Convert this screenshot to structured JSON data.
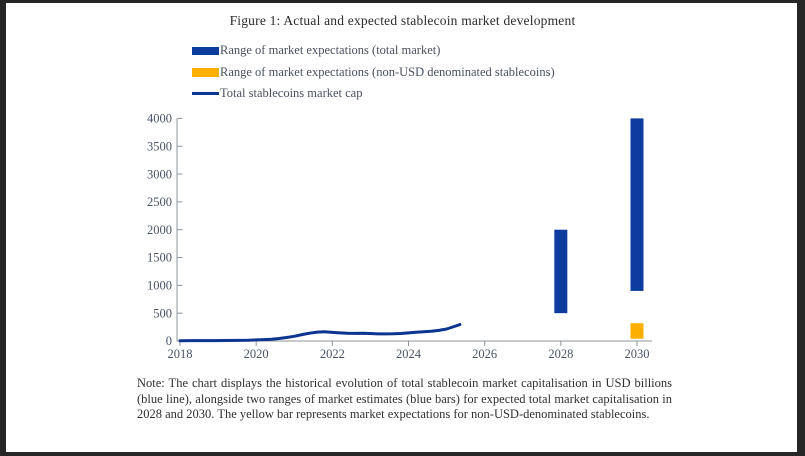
{
  "figure": {
    "title": "Figure 1: Actual and expected stablecoin market development",
    "note": "Note: The chart displays the historical evolution of total stablecoin market capitalisation in USD billions (blue line), alongside two ranges of market estimates (blue bars) for expected total market capitalisation in 2028 and 2030. The yellow bar represents market expectations for non-USD-denominated stablecoins."
  },
  "legend": {
    "items": [
      {
        "label": "Range of market expectations (total market)",
        "swatch": "bar",
        "color": "#0C3C9E"
      },
      {
        "label": "Range of market expectations (non-USD denominated stablecoins)",
        "swatch": "bar",
        "color": "#FBAF00"
      },
      {
        "label": "Total stablecoins market cap",
        "swatch": "line",
        "color": "#0B3590"
      }
    ]
  },
  "colors": {
    "bar_blue": "#0C3C9E",
    "bar_yellow": "#FBAF00",
    "line_blue": "#0B3590",
    "axis": "#8F9499",
    "chart_text": "#4A5468",
    "page_edge": "#262626"
  },
  "chart_data": {
    "type": "line",
    "title": "Figure 1: Actual and expected stablecoin market development",
    "xlabel": "",
    "ylabel": "",
    "units": "USD billions",
    "grid": false,
    "legend_position": "top-left",
    "xlim": [
      2018,
      2030.4
    ],
    "ylim": [
      0,
      4000
    ],
    "x_ticks": [
      2018,
      2020,
      2022,
      2024,
      2026,
      2028,
      2030
    ],
    "y_ticks": [
      0,
      500,
      1000,
      1500,
      2000,
      2500,
      3000,
      3500,
      4000
    ],
    "line_series": {
      "name": "Total stablecoins market cap",
      "color": "#0B3590",
      "x": [
        2018.0,
        2018.3,
        2018.6,
        2018.9,
        2019.2,
        2019.5,
        2019.8,
        2020.0,
        2020.2,
        2020.4,
        2020.6,
        2020.8,
        2021.0,
        2021.2,
        2021.4,
        2021.6,
        2021.8,
        2022.0,
        2022.2,
        2022.4,
        2022.6,
        2022.8,
        2023.0,
        2023.2,
        2023.4,
        2023.6,
        2023.8,
        2024.0,
        2024.2,
        2024.4,
        2024.6,
        2024.8,
        2025.0,
        2025.2,
        2025.35
      ],
      "values": [
        6,
        7,
        7,
        8,
        9,
        10,
        12,
        20,
        25,
        32,
        45,
        62,
        85,
        115,
        140,
        160,
        165,
        155,
        145,
        138,
        136,
        140,
        134,
        128,
        127,
        130,
        135,
        145,
        158,
        168,
        176,
        190,
        215,
        260,
        295
      ]
    },
    "range_bars": [
      {
        "name": "Range of market expectations (total market)",
        "x": 2028,
        "low": 500,
        "high": 2000,
        "color": "#0C3C9E"
      },
      {
        "name": "Range of market expectations (total market)",
        "x": 2030,
        "low": 900,
        "high": 4000,
        "color": "#0C3C9E"
      },
      {
        "name": "Range of market expectations (non-USD denominated stablecoins)",
        "x": 2030,
        "low": 40,
        "high": 320,
        "color": "#FBAF00"
      }
    ]
  }
}
